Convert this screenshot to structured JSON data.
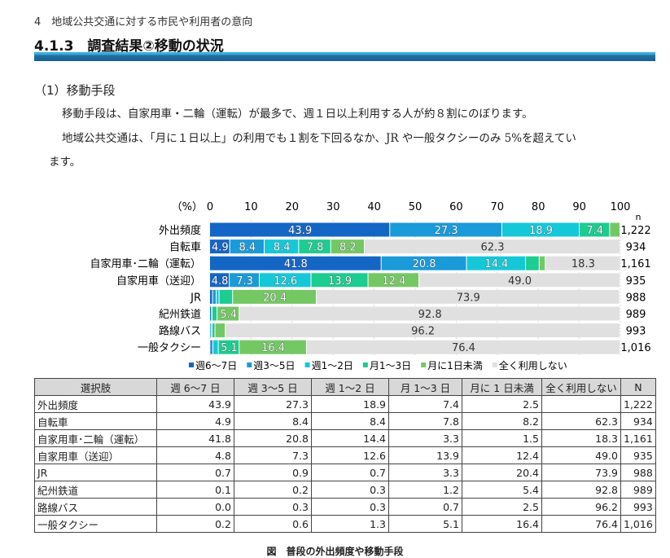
{
  "header": {
    "chapter": "4　地域公共交通に対する市民や利用者の意向",
    "section": "4.1.3　調査結果②移動の状況"
  },
  "body": {
    "subheading": "（1）移動手段",
    "para1": "移動手段は、自家用車・二輪（運転）が最多で、週１日以上利用する人が約８割にのぼります。",
    "para2a": "地域公共交通は、「月に１日以上」の利用でも１割を下回るなか、JR や一般タクシーのみ 5%を超えてい",
    "para2b": "ます。"
  },
  "chart_data": {
    "type": "bar",
    "orientation": "horizontal",
    "stacked": true,
    "unit_label": "（%）",
    "n_label": "n",
    "xlim": [
      0,
      100
    ],
    "xticks": [
      0,
      10,
      20,
      30,
      40,
      50,
      60,
      70,
      80,
      90,
      100
    ],
    "legend_position": "bottom",
    "categories": [
      "外出頻度",
      "自転車",
      "自家用車･二輪（運転）",
      "自家用車（送迎）",
      "JR",
      "紀州鉄道",
      "路線バス",
      "一般タクシー"
    ],
    "n": [
      "1,222",
      "934",
      "1,161",
      "935",
      "988",
      "989",
      "993",
      "1,016"
    ],
    "series": [
      {
        "name": "週6～7日",
        "color": "#1466c4",
        "values": [
          43.9,
          4.9,
          41.8,
          4.8,
          0.7,
          0.1,
          0.0,
          0.2
        ]
      },
      {
        "name": "週3～5日",
        "color": "#1a9ad8",
        "values": [
          27.3,
          8.4,
          20.8,
          7.3,
          0.9,
          0.2,
          0.3,
          0.6
        ]
      },
      {
        "name": "週1～2日",
        "color": "#14c8d8",
        "values": [
          18.9,
          8.4,
          14.4,
          12.6,
          0.7,
          0.3,
          0.3,
          1.3
        ]
      },
      {
        "name": "月1～3日",
        "color": "#1ccc90",
        "values": [
          7.4,
          7.8,
          3.3,
          13.9,
          3.3,
          1.2,
          0.7,
          5.1
        ]
      },
      {
        "name": "月に1日未満",
        "color": "#74c864",
        "values": [
          2.5,
          8.2,
          1.5,
          12.4,
          20.4,
          5.4,
          2.5,
          16.4
        ]
      },
      {
        "name": "全く利用しない",
        "color": "#e0e0e0",
        "values": [
          null,
          62.3,
          18.3,
          49.0,
          73.9,
          92.8,
          96.2,
          76.4
        ]
      }
    ]
  },
  "table": {
    "headers": [
      "選択肢",
      "週 6～7 日",
      "週 3～5 日",
      "週 1～2 日",
      "月 1～3 日",
      "月に 1 日未満",
      "全く利用しない",
      "N"
    ],
    "rows": [
      [
        "外出頻度",
        "43.9",
        "27.3",
        "18.9",
        "7.4",
        "2.5",
        "",
        "1,222"
      ],
      [
        "自転車",
        "4.9",
        "8.4",
        "8.4",
        "7.8",
        "8.2",
        "62.3",
        "934"
      ],
      [
        "自家用車･二輪（運転）",
        "41.8",
        "20.8",
        "14.4",
        "3.3",
        "1.5",
        "18.3",
        "1,161"
      ],
      [
        "自家用車（送迎）",
        "4.8",
        "7.3",
        "12.6",
        "13.9",
        "12.4",
        "49.0",
        "935"
      ],
      [
        "JR",
        "0.7",
        "0.9",
        "0.7",
        "3.3",
        "20.4",
        "73.9",
        "988"
      ],
      [
        "紀州鉄道",
        "0.1",
        "0.2",
        "0.3",
        "1.2",
        "5.4",
        "92.8",
        "989"
      ],
      [
        "路線バス",
        "0.0",
        "0.3",
        "0.3",
        "0.7",
        "2.5",
        "96.2",
        "993"
      ],
      [
        "一般タクシー",
        "0.2",
        "0.6",
        "1.3",
        "5.1",
        "16.4",
        "76.4",
        "1,016"
      ]
    ]
  },
  "caption": "図　普段の外出頻度や移動手段"
}
